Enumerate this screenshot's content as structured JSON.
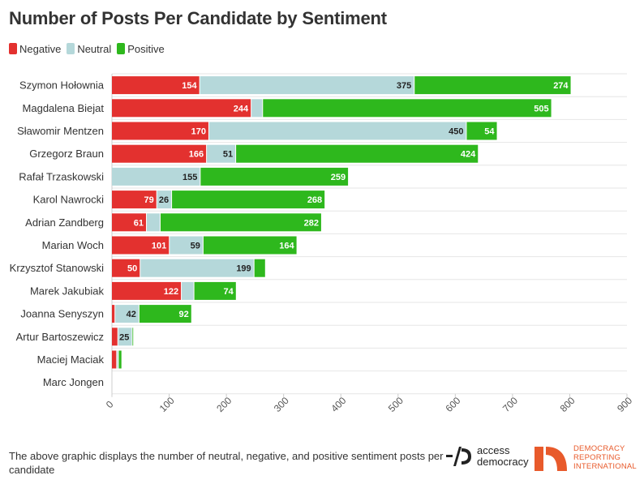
{
  "title": "Number of Posts Per Candidate by Sentiment",
  "legend": [
    {
      "label": "Negative",
      "color": "#e3312f"
    },
    {
      "label": "Neutral",
      "color": "#b5d8da"
    },
    {
      "label": "Positive",
      "color": "#2eb81d"
    }
  ],
  "footer": {
    "caption": "The above graphic displays the number of neutral, negative, and positive sentiment posts per candidate"
  },
  "logos": {
    "access_democracy": {
      "line1": "access",
      "line2": "democracy"
    },
    "dri": {
      "line1": "DEMOCRACY",
      "line2": "REPORTING",
      "line3": "INTERNATIONAL",
      "color": "#e85a2b"
    }
  },
  "chart_data": {
    "type": "bar",
    "orientation": "horizontal",
    "stacked": true,
    "title": "Number of Posts Per Candidate by Sentiment",
    "xlim": [
      0,
      900
    ],
    "xticks": [
      0,
      100,
      200,
      300,
      400,
      500,
      600,
      700,
      800,
      900
    ],
    "grid": true,
    "legend_position": "top-left",
    "categories": [
      "Szymon Hołownia",
      "Magdalena Biejat",
      "Sławomir Mentzen",
      "Grzegorz Braun",
      "Rafał Trzaskowski",
      "Karol Nawrocki",
      "Adrian Zandberg",
      "Marian Woch",
      "Krzysztof Stanowski",
      "Marek Jakubiak",
      "Joanna Senyszyn",
      "Artur Bartoszewicz",
      "Maciej Maciak",
      "Marc Jongen"
    ],
    "series": [
      {
        "name": "Negative",
        "color": "#e3312f",
        "label_color": "#ffffff",
        "values": [
          154,
          244,
          170,
          166,
          0,
          79,
          61,
          101,
          50,
          122,
          6,
          11,
          9,
          0
        ],
        "labels": [
          "154",
          "244",
          "170",
          "166",
          "",
          "79",
          "61",
          "101",
          "50",
          "122",
          "",
          "",
          "",
          ""
        ]
      },
      {
        "name": "Neutral",
        "color": "#b5d8da",
        "label_color": "#222222",
        "values": [
          375,
          20,
          450,
          51,
          155,
          26,
          24,
          59,
          199,
          22,
          42,
          25,
          3,
          0
        ],
        "labels": [
          "375",
          "",
          "450",
          "51",
          "155",
          "26",
          "",
          "59",
          "199",
          "",
          "42",
          "25",
          "",
          ""
        ]
      },
      {
        "name": "Positive",
        "color": "#2eb81d",
        "label_color": "#ffffff",
        "values": [
          274,
          505,
          54,
          424,
          259,
          268,
          282,
          164,
          20,
          74,
          92,
          2,
          6,
          0
        ],
        "labels": [
          "274",
          "505",
          "54",
          "424",
          "259",
          "268",
          "282",
          "164",
          "",
          "74",
          "92",
          "",
          "",
          ""
        ]
      }
    ]
  }
}
